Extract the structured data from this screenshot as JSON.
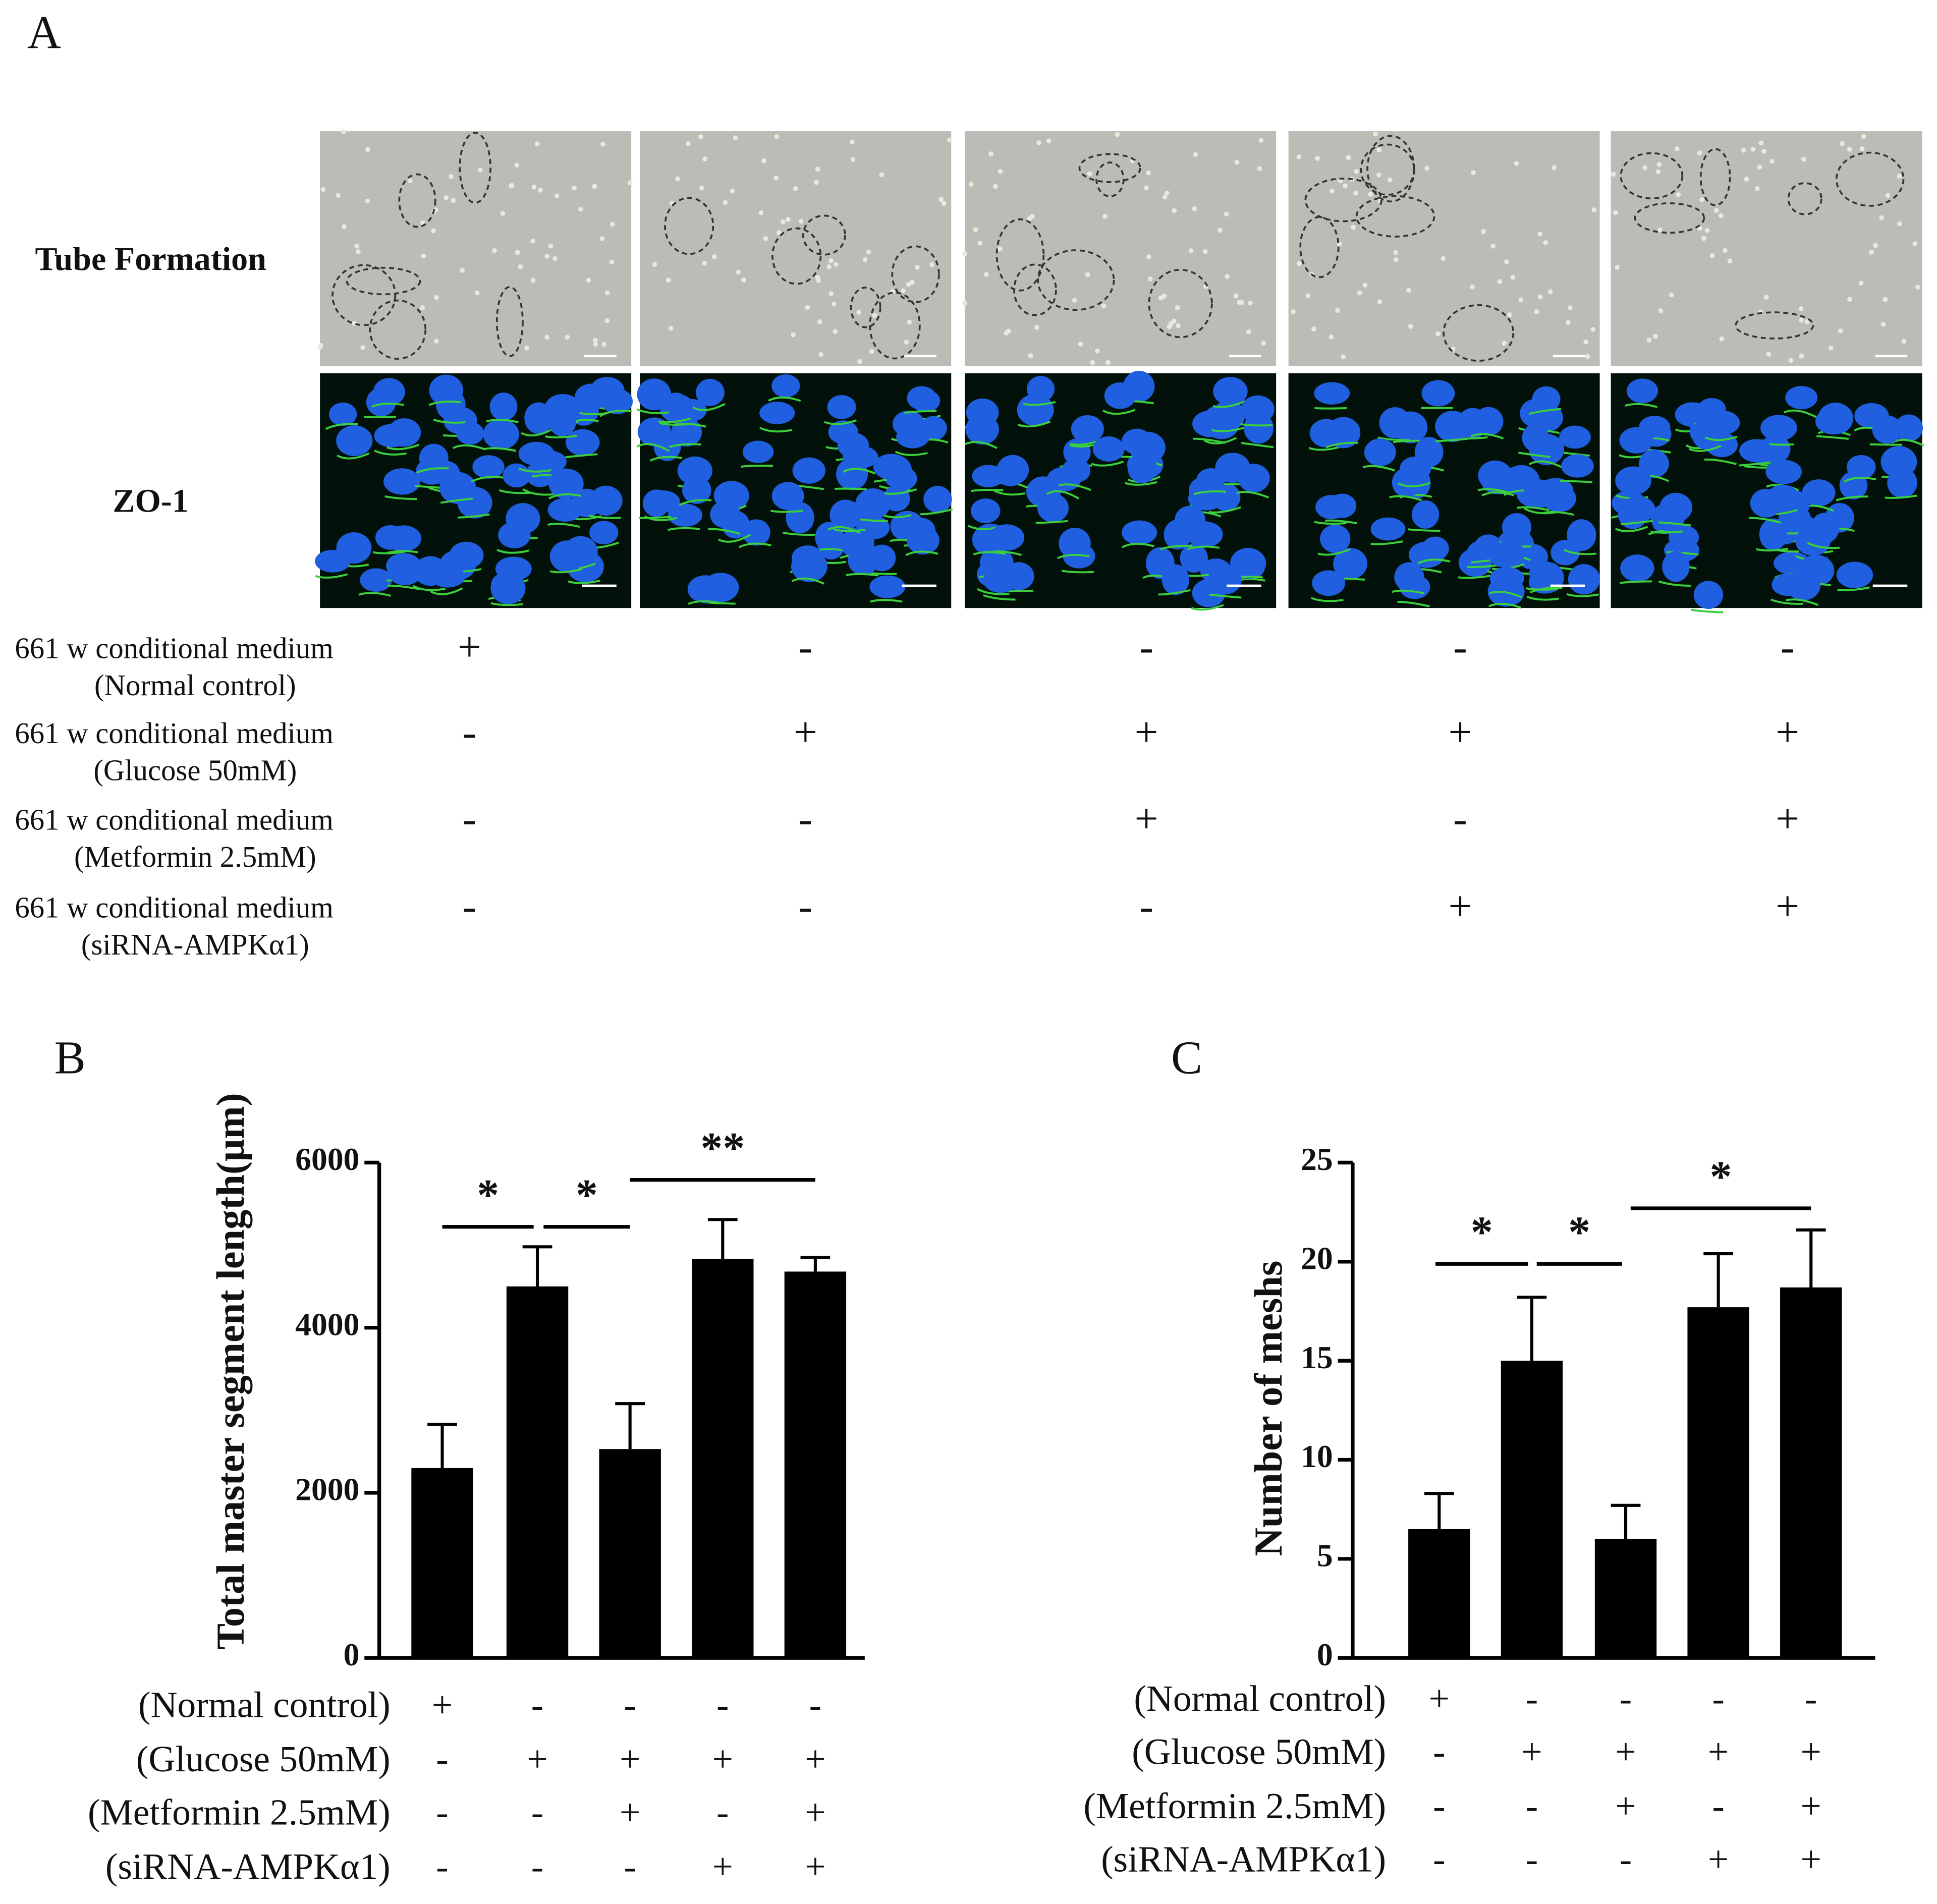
{
  "panel_a": {
    "label": "A",
    "rows": [
      "Tube Formation",
      "ZO-1"
    ],
    "conditions": [
      {
        "label": "661 w conditional medium",
        "sub": "(Normal control)",
        "signs": [
          "+",
          "-",
          "-",
          "-",
          "-"
        ]
      },
      {
        "label": "661 w conditional medium",
        "sub": "(Glucose 50mM)",
        "signs": [
          "-",
          "+",
          "+",
          "+",
          "+"
        ]
      },
      {
        "label": "661 w conditional medium",
        "sub": "(Metformin 2.5mM)",
        "signs": [
          "-",
          "-",
          "+",
          "-",
          "+"
        ]
      },
      {
        "label": "661 w conditional medium",
        "sub": "(siRNA-AMPKα1)",
        "signs": [
          "-",
          "-",
          "-",
          "+",
          "+"
        ]
      }
    ]
  },
  "chart_data": [
    {
      "type": "bar",
      "panel": "B",
      "y_label": "Total master segment length(μm)",
      "values": [
        2300,
        4500,
        2530,
        4830,
        4680
      ],
      "errors": [
        530,
        480,
        550,
        480,
        170
      ],
      "color": "#000000",
      "ylim": [
        0,
        6000
      ],
      "yticks": [
        0,
        2000,
        4000,
        6000
      ],
      "annotations": [
        "*",
        "*",
        "**"
      ],
      "conditions": [
        {
          "label": "(Normal control)",
          "signs": [
            "+",
            "-",
            "-",
            "-",
            "-"
          ]
        },
        {
          "label": "(Glucose 50mM)",
          "signs": [
            "-",
            "+",
            "+",
            "+",
            "+"
          ]
        },
        {
          "label": "(Metformin 2.5mM)",
          "signs": [
            "-",
            "-",
            "+",
            "-",
            "+"
          ]
        },
        {
          "label": "(siRNA-AMPKα1)",
          "signs": [
            "-",
            "-",
            "-",
            "+",
            "+"
          ]
        }
      ]
    },
    {
      "type": "bar",
      "panel": "C",
      "y_label": "Number of meshs",
      "values": [
        6.5,
        15,
        6,
        17.7,
        18.7
      ],
      "errors": [
        1.8,
        3.2,
        1.7,
        2.7,
        2.9
      ],
      "color": "#000000",
      "ylim": [
        0,
        25
      ],
      "yticks": [
        0,
        5,
        10,
        15,
        20,
        25
      ],
      "annotations": [
        "*",
        "*",
        "*"
      ],
      "conditions": [
        {
          "label": "(Normal control)",
          "signs": [
            "+",
            "-",
            "-",
            "-",
            "-"
          ]
        },
        {
          "label": "(Glucose 50mM)",
          "signs": [
            "-",
            "+",
            "+",
            "+",
            "+"
          ]
        },
        {
          "label": "(Metformin 2.5mM)",
          "signs": [
            "-",
            "-",
            "+",
            "-",
            "+"
          ]
        },
        {
          "label": "(siRNA-AMPKα1)",
          "signs": [
            "-",
            "-",
            "-",
            "+",
            "+"
          ]
        }
      ]
    }
  ]
}
